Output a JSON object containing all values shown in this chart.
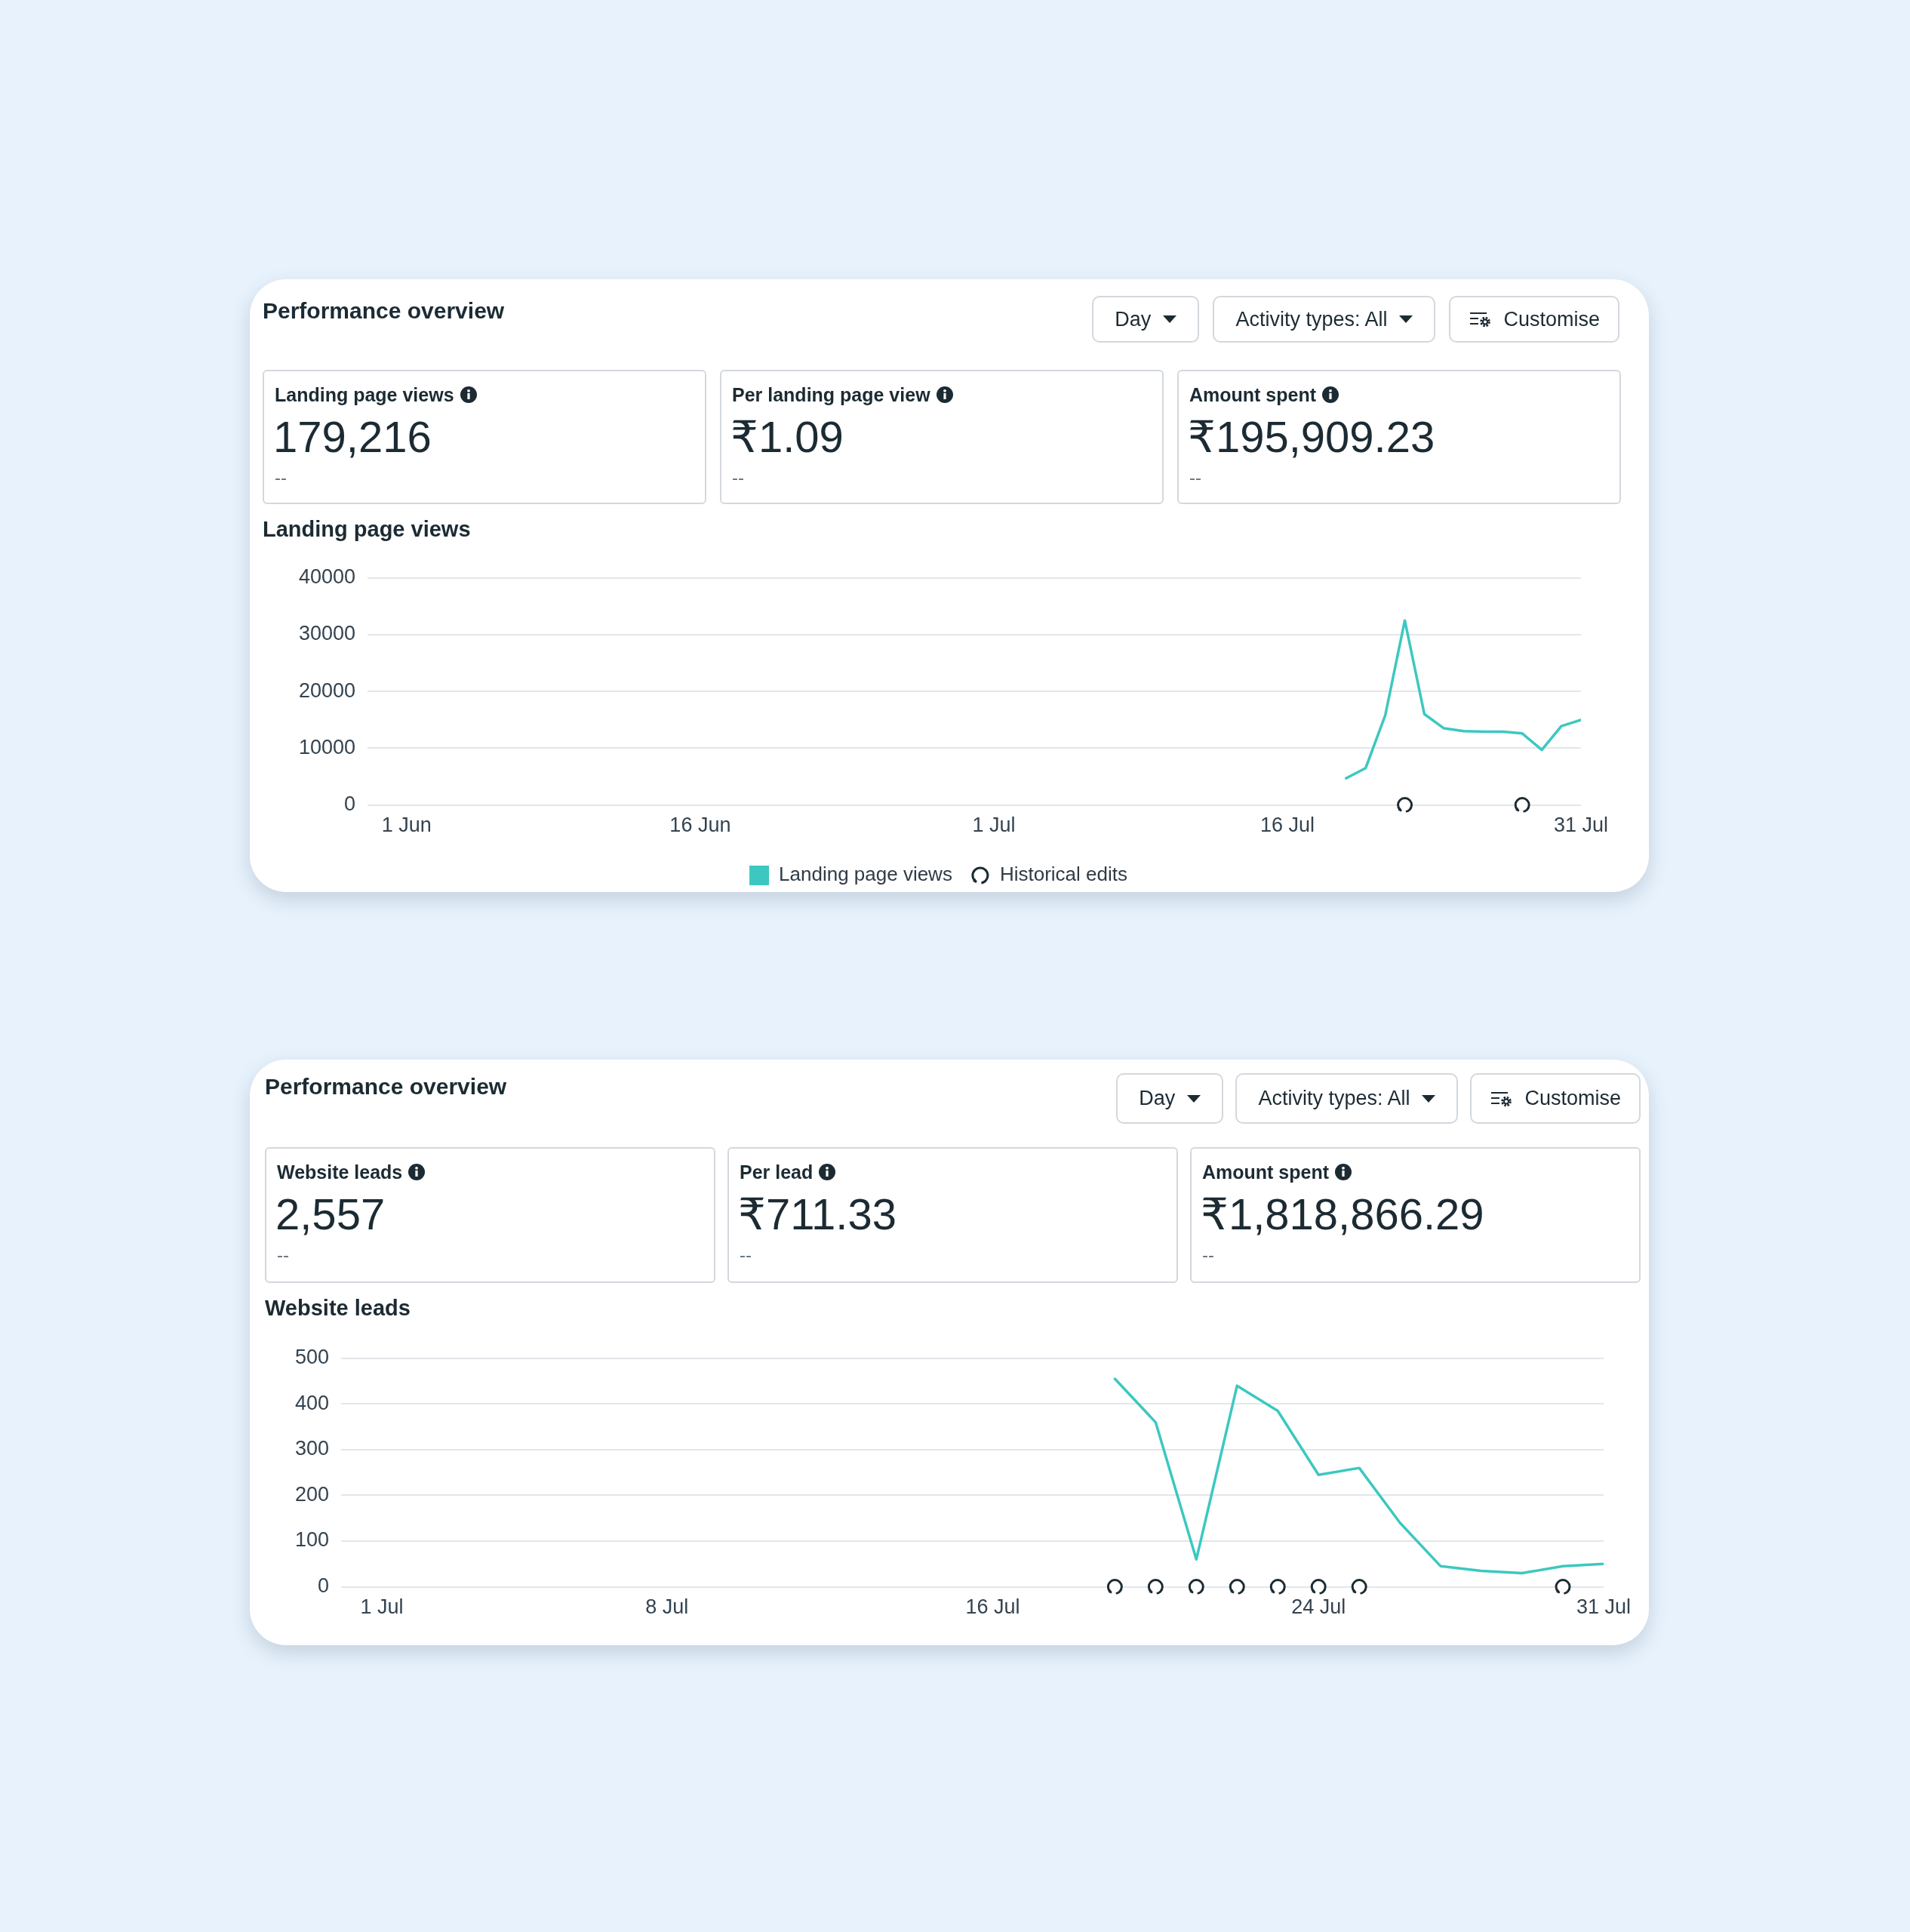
{
  "chart_data": [
    {
      "type": "other",
      "title": "Performance overview",
      "annotations": [
        "Day",
        "Activity types: All",
        "Customise",
        "Landing page views",
        "179,216",
        "--",
        "Per landing page view",
        "₹1.09",
        "--",
        "Amount spent",
        "₹195,909.23",
        "--"
      ]
    },
    {
      "type": "line",
      "title": "Landing page views",
      "x": [
        "--07-19",
        "--07-20",
        "--07-21",
        "--07-22",
        "--07-23",
        "--07-24",
        "--07-25",
        "--07-26",
        "--07-27",
        "--07-28",
        "--07-29",
        "--07-30",
        "--07-31"
      ],
      "xlim": [
        "--05-30",
        "--07-31"
      ],
      "xticks": [
        {
          "value": "--06-01",
          "label": "1 Jun"
        },
        {
          "value": "--06-16",
          "label": "16 Jun"
        },
        {
          "value": "--07-01",
          "label": "1 Jul"
        },
        {
          "value": "--07-16",
          "label": "16 Jul"
        },
        {
          "value": "--07-31",
          "label": "31 Jul"
        }
      ],
      "ylim": [
        0,
        40000
      ],
      "yticks": [
        0,
        10000,
        20000,
        30000,
        40000
      ],
      "grid": "y",
      "legend": "bottom",
      "series": [
        {
          "name": "Landing page views",
          "color": "#3cc8c0",
          "values": [
            4700,
            6500,
            15800,
            32500,
            16000,
            13500,
            13000,
            12900,
            12900,
            12600,
            9700,
            13900,
            15000
          ]
        },
        {
          "name": "Historical edits",
          "type": "scatter",
          "marker": "circle",
          "color": "#1c2b33",
          "x": [
            "--07-22",
            "--07-28"
          ],
          "values": [
            0,
            0
          ]
        }
      ]
    },
    {
      "type": "other",
      "title": "Performance overview",
      "annotations": [
        "Day",
        "Activity types: All",
        "Customise",
        "Website leads",
        "2,557",
        "--",
        "Per lead",
        "₹711.33",
        "--",
        "Amount spent",
        "₹1,818,866.29",
        "--"
      ]
    },
    {
      "type": "line",
      "title": "Website leads",
      "x": [
        "--07-19",
        "--07-20",
        "--07-21",
        "--07-22",
        "--07-23",
        "--07-24",
        "--07-25",
        "--07-26",
        "--07-27",
        "--07-28",
        "--07-29",
        "--07-30",
        "--07-31"
      ],
      "xlim": [
        "--06-30",
        "--07-31"
      ],
      "xticks": [
        {
          "value": "--07-01",
          "label": "1 Jul"
        },
        {
          "value": "--07-08",
          "label": "8 Jul"
        },
        {
          "value": "--07-16",
          "label": "16 Jul"
        },
        {
          "value": "--07-24",
          "label": "24 Jul"
        },
        {
          "value": "--07-31",
          "label": "31 Jul"
        }
      ],
      "ylim": [
        0,
        500
      ],
      "yticks": [
        0,
        100,
        200,
        300,
        400,
        500
      ],
      "grid": "y",
      "series": [
        {
          "color": "#3cc8c0",
          "values": [
            455,
            360,
            60,
            440,
            385,
            245,
            260,
            140,
            45,
            35,
            30,
            45,
            50
          ]
        },
        {
          "type": "scatter",
          "marker": "circle",
          "color": "#1c2b33",
          "x": [
            "--07-19",
            "--07-20",
            "--07-21",
            "--07-22",
            "--07-23",
            "--07-24",
            "--07-25",
            "--07-30"
          ],
          "values": [
            0,
            0,
            0,
            0,
            0,
            0,
            0,
            0
          ]
        }
      ]
    }
  ]
}
